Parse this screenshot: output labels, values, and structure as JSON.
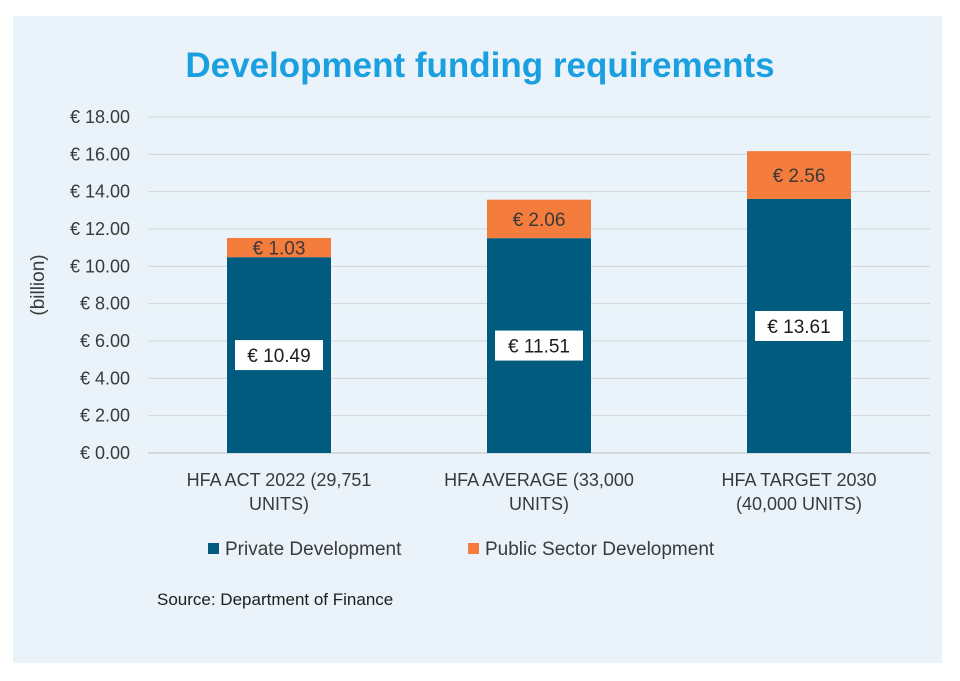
{
  "chart_data": {
    "type": "bar",
    "stacked": true,
    "title": "Development funding requirements",
    "ylabel": "(billion)",
    "ylim": [
      0,
      18
    ],
    "ytick_step": 2,
    "ytick_labels": [
      "€ 0.00",
      "€ 2.00",
      "€ 4.00",
      "€ 6.00",
      "€ 8.00",
      "€ 10.00",
      "€ 12.00",
      "€ 14.00",
      "€ 16.00",
      "€ 18.00"
    ],
    "categories": [
      [
        "HFA ACT 2022 (29,751",
        "UNITS)"
      ],
      [
        "HFA AVERAGE (33,000",
        "UNITS)"
      ],
      [
        "HFA TARGET 2030",
        "(40,000 UNITS)"
      ]
    ],
    "series": [
      {
        "name": "Private Development",
        "color": "#005b7f",
        "values": [
          10.49,
          11.51,
          13.61
        ],
        "labels": [
          "€ 10.49",
          "€ 11.51",
          "€ 13.61"
        ]
      },
      {
        "name": "Public Sector Development",
        "color": "#f47c3c",
        "values": [
          1.03,
          2.06,
          2.56
        ],
        "labels": [
          "€ 1.03",
          "€ 2.06",
          "€ 2.56"
        ]
      }
    ],
    "grid": true,
    "legend_position": "bottom"
  },
  "source": "Source: Department of Finance"
}
